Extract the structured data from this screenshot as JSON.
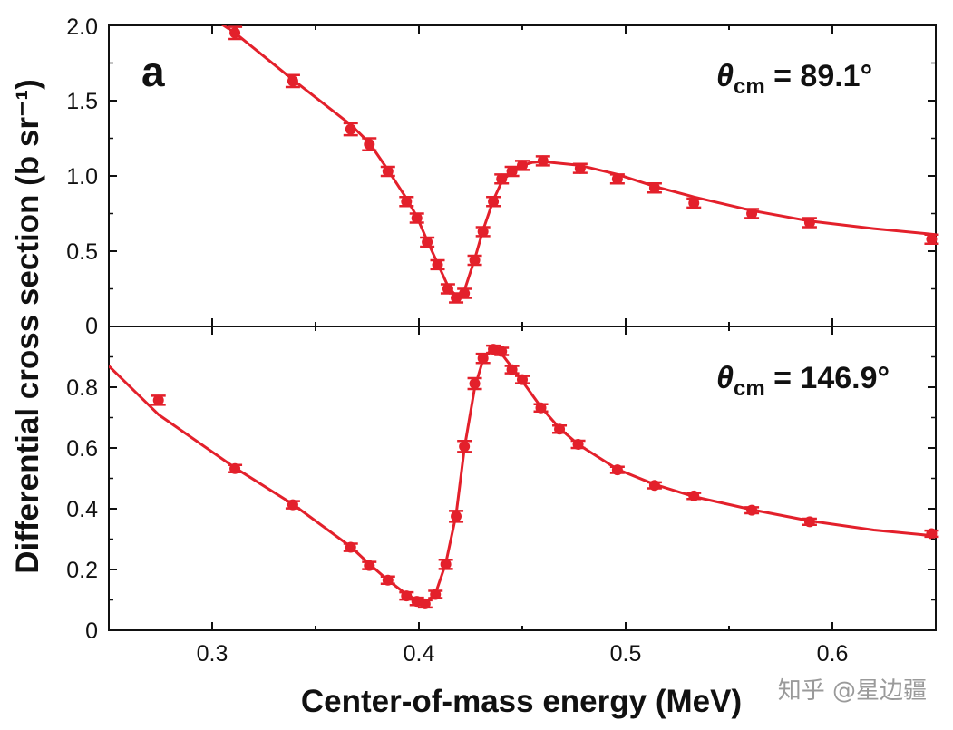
{
  "chart_data": {
    "type": "scatter",
    "xlabel": "Center-of-mass energy (MeV)",
    "ylabel": "Differential cross section (b sr⁻¹)",
    "xlim": [
      0.25,
      0.65
    ],
    "x_ticks": [
      "0.3",
      "0.4",
      "0.5",
      "0.6"
    ],
    "x_tick_values": [
      0.3,
      0.4,
      0.5,
      0.6
    ],
    "color": "#e3202b",
    "grid": false,
    "panel_label": "a",
    "watermark": "知乎 @星边疆",
    "panels": [
      {
        "angle_symbol": "θ",
        "angle_sub": "cm",
        "angle_value": " = 89.1°",
        "ylim": [
          0,
          2.0
        ],
        "y_ticks": [
          "0",
          "0.5",
          "1.0",
          "1.5",
          "2.0"
        ],
        "y_tick_values": [
          0,
          0.5,
          1.0,
          1.5,
          2.0
        ],
        "points": [
          {
            "x": 0.311,
            "y": 1.95,
            "err": 0.04
          },
          {
            "x": 0.339,
            "y": 1.63,
            "err": 0.04
          },
          {
            "x": 0.367,
            "y": 1.31,
            "err": 0.04
          },
          {
            "x": 0.376,
            "y": 1.21,
            "err": 0.04
          },
          {
            "x": 0.385,
            "y": 1.03,
            "err": 0.03
          },
          {
            "x": 0.394,
            "y": 0.83,
            "err": 0.03
          },
          {
            "x": 0.399,
            "y": 0.72,
            "err": 0.03
          },
          {
            "x": 0.404,
            "y": 0.56,
            "err": 0.03
          },
          {
            "x": 0.409,
            "y": 0.41,
            "err": 0.03
          },
          {
            "x": 0.414,
            "y": 0.25,
            "err": 0.03
          },
          {
            "x": 0.418,
            "y": 0.19,
            "err": 0.03
          },
          {
            "x": 0.422,
            "y": 0.22,
            "err": 0.03
          },
          {
            "x": 0.427,
            "y": 0.44,
            "err": 0.03
          },
          {
            "x": 0.431,
            "y": 0.63,
            "err": 0.03
          },
          {
            "x": 0.436,
            "y": 0.83,
            "err": 0.03
          },
          {
            "x": 0.44,
            "y": 0.98,
            "err": 0.03
          },
          {
            "x": 0.445,
            "y": 1.03,
            "err": 0.03
          },
          {
            "x": 0.45,
            "y": 1.07,
            "err": 0.03
          },
          {
            "x": 0.46,
            "y": 1.1,
            "err": 0.03
          },
          {
            "x": 0.478,
            "y": 1.05,
            "err": 0.03
          },
          {
            "x": 0.496,
            "y": 0.98,
            "err": 0.03
          },
          {
            "x": 0.514,
            "y": 0.92,
            "err": 0.03
          },
          {
            "x": 0.533,
            "y": 0.82,
            "err": 0.03
          },
          {
            "x": 0.561,
            "y": 0.75,
            "err": 0.03
          },
          {
            "x": 0.589,
            "y": 0.69,
            "err": 0.03
          },
          {
            "x": 0.648,
            "y": 0.58,
            "err": 0.03
          }
        ],
        "fit": [
          [
            0.3,
            2.05
          ],
          [
            0.311,
            1.95
          ],
          [
            0.339,
            1.64
          ],
          [
            0.367,
            1.34
          ],
          [
            0.376,
            1.22
          ],
          [
            0.385,
            1.04
          ],
          [
            0.394,
            0.85
          ],
          [
            0.399,
            0.73
          ],
          [
            0.404,
            0.57
          ],
          [
            0.409,
            0.42
          ],
          [
            0.414,
            0.27
          ],
          [
            0.418,
            0.2
          ],
          [
            0.422,
            0.24
          ],
          [
            0.427,
            0.45
          ],
          [
            0.431,
            0.64
          ],
          [
            0.436,
            0.84
          ],
          [
            0.44,
            0.96
          ],
          [
            0.445,
            1.03
          ],
          [
            0.45,
            1.07
          ],
          [
            0.455,
            1.09
          ],
          [
            0.46,
            1.095
          ],
          [
            0.478,
            1.07
          ],
          [
            0.496,
            1.01
          ],
          [
            0.514,
            0.93
          ],
          [
            0.533,
            0.86
          ],
          [
            0.561,
            0.77
          ],
          [
            0.589,
            0.7
          ],
          [
            0.62,
            0.65
          ],
          [
            0.65,
            0.61
          ]
        ]
      },
      {
        "angle_symbol": "θ",
        "angle_sub": "cm",
        "angle_value": " = 146.9°",
        "ylim": [
          0,
          1.0
        ],
        "y_ticks": [
          "0",
          "0.2",
          "0.4",
          "0.6",
          "0.8"
        ],
        "y_tick_values": [
          0,
          0.2,
          0.4,
          0.6,
          0.8
        ],
        "points": [
          {
            "x": 0.274,
            "y": 0.757,
            "err": 0.015
          },
          {
            "x": 0.311,
            "y": 0.532,
            "err": 0.012
          },
          {
            "x": 0.339,
            "y": 0.413,
            "err": 0.012
          },
          {
            "x": 0.367,
            "y": 0.273,
            "err": 0.012
          },
          {
            "x": 0.376,
            "y": 0.213,
            "err": 0.012
          },
          {
            "x": 0.385,
            "y": 0.165,
            "err": 0.012
          },
          {
            "x": 0.394,
            "y": 0.113,
            "err": 0.012
          },
          {
            "x": 0.399,
            "y": 0.095,
            "err": 0.012
          },
          {
            "x": 0.403,
            "y": 0.087,
            "err": 0.012
          },
          {
            "x": 0.408,
            "y": 0.118,
            "err": 0.012
          },
          {
            "x": 0.413,
            "y": 0.217,
            "err": 0.015
          },
          {
            "x": 0.418,
            "y": 0.375,
            "err": 0.018
          },
          {
            "x": 0.422,
            "y": 0.605,
            "err": 0.018
          },
          {
            "x": 0.427,
            "y": 0.812,
            "err": 0.018
          },
          {
            "x": 0.431,
            "y": 0.895,
            "err": 0.015
          },
          {
            "x": 0.436,
            "y": 0.925,
            "err": 0.012
          },
          {
            "x": 0.44,
            "y": 0.918,
            "err": 0.012
          },
          {
            "x": 0.445,
            "y": 0.858,
            "err": 0.012
          },
          {
            "x": 0.45,
            "y": 0.825,
            "err": 0.012
          },
          {
            "x": 0.459,
            "y": 0.732,
            "err": 0.012
          },
          {
            "x": 0.468,
            "y": 0.662,
            "err": 0.012
          },
          {
            "x": 0.477,
            "y": 0.612,
            "err": 0.012
          },
          {
            "x": 0.496,
            "y": 0.528,
            "err": 0.01
          },
          {
            "x": 0.514,
            "y": 0.477,
            "err": 0.01
          },
          {
            "x": 0.533,
            "y": 0.442,
            "err": 0.01
          },
          {
            "x": 0.561,
            "y": 0.395,
            "err": 0.01
          },
          {
            "x": 0.589,
            "y": 0.357,
            "err": 0.01
          },
          {
            "x": 0.648,
            "y": 0.318,
            "err": 0.01
          }
        ],
        "fit": [
          [
            0.25,
            0.87
          ],
          [
            0.274,
            0.71
          ],
          [
            0.311,
            0.535
          ],
          [
            0.339,
            0.415
          ],
          [
            0.367,
            0.275
          ],
          [
            0.376,
            0.218
          ],
          [
            0.385,
            0.165
          ],
          [
            0.394,
            0.118
          ],
          [
            0.399,
            0.1
          ],
          [
            0.403,
            0.09
          ],
          [
            0.408,
            0.12
          ],
          [
            0.413,
            0.22
          ],
          [
            0.418,
            0.38
          ],
          [
            0.422,
            0.6
          ],
          [
            0.427,
            0.8
          ],
          [
            0.431,
            0.89
          ],
          [
            0.435,
            0.925
          ],
          [
            0.44,
            0.91
          ],
          [
            0.445,
            0.865
          ],
          [
            0.45,
            0.82
          ],
          [
            0.459,
            0.735
          ],
          [
            0.468,
            0.665
          ],
          [
            0.477,
            0.612
          ],
          [
            0.496,
            0.53
          ],
          [
            0.514,
            0.48
          ],
          [
            0.533,
            0.44
          ],
          [
            0.561,
            0.397
          ],
          [
            0.589,
            0.36
          ],
          [
            0.62,
            0.33
          ],
          [
            0.65,
            0.31
          ]
        ]
      }
    ]
  }
}
